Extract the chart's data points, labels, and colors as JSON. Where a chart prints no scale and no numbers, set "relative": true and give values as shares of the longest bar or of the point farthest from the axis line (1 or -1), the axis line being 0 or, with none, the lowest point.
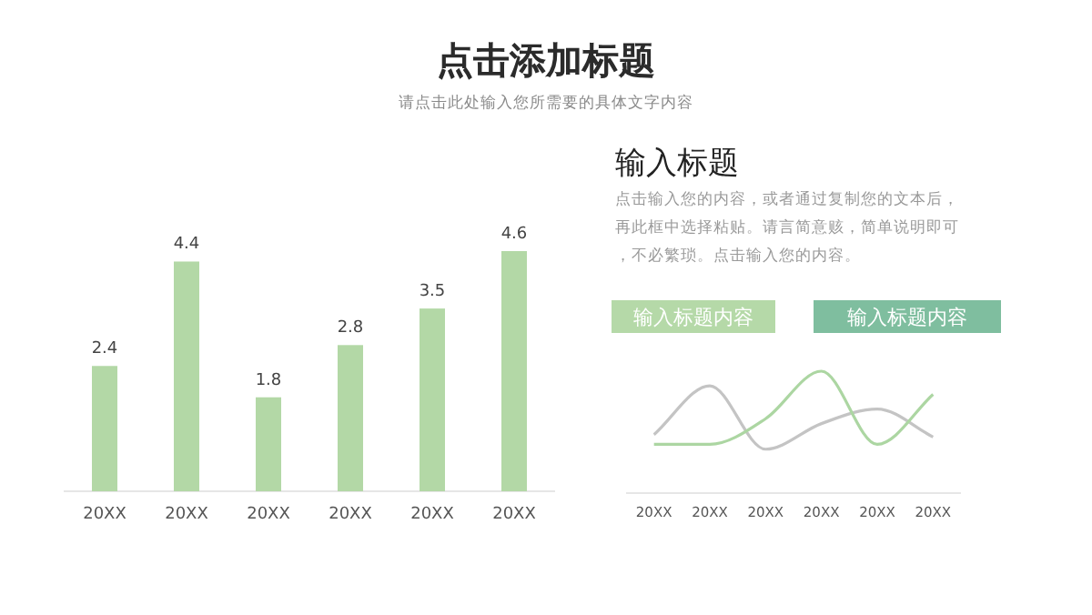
{
  "chart_data": [
    {
      "type": "bar",
      "title": "点击添加标题",
      "subtitle": "请点击此处输入您所需要的具体文字内容",
      "categories": [
        "20XX",
        "20XX",
        "20XX",
        "20XX",
        "20XX",
        "20XX"
      ],
      "values": [
        2.4,
        4.4,
        1.8,
        2.8,
        3.5,
        4.6
      ],
      "color": "#b3d8a6",
      "data_labels": true
    },
    {
      "type": "other",
      "title": "输入标题",
      "annotations": [
        "点击输入您的内容，或者通过复制您的文本后，再此框中选择粘贴。请言简意赅，简单说明即可，不必繁琐。点击输入您的内容。",
        "输入标题内容",
        "输入标题内容"
      ]
    },
    {
      "type": "line",
      "relative": true,
      "categories": [
        "20XX",
        "20XX",
        "20XX",
        "20XX",
        "20XX",
        "20XX"
      ],
      "marker": "none",
      "series": [
        {
          "color": "#c4c4c4",
          "values": [
            0.48,
            0.88,
            0.36,
            0.57,
            0.69,
            0.46
          ]
        },
        {
          "color": "#acd6a2",
          "values": [
            0.4,
            0.4,
            0.61,
            1,
            0.4,
            0.81
          ]
        }
      ]
    }
  ]
}
